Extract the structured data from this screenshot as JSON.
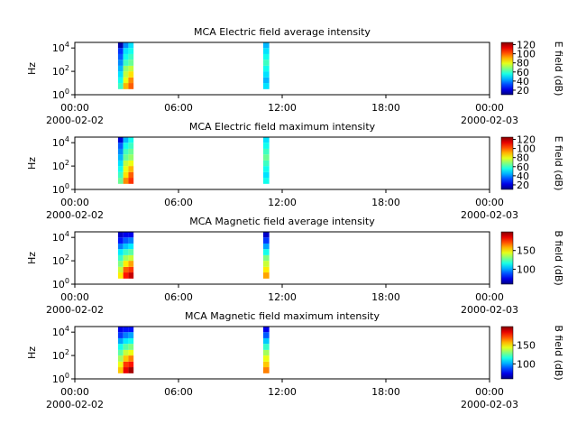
{
  "chart_data": [
    {
      "type": "spectrogram",
      "title": "MCA  Electric field average intensity",
      "ylabel": "Hz",
      "colorbar_label": "E field (dB)",
      "xlim": [
        0,
        24
      ],
      "xticks": [
        {
          "value": 0,
          "label": "00:00"
        },
        {
          "value": 6,
          "label": "06:00"
        },
        {
          "value": 12,
          "label": "12:00"
        },
        {
          "value": 18,
          "label": "18:00"
        },
        {
          "value": 24,
          "label": "00:00"
        }
      ],
      "x_date_labels": [
        {
          "value": 0,
          "label": "2000-02-02"
        },
        {
          "value": 24,
          "label": "2000-02-03"
        }
      ],
      "y_log": true,
      "ylim": [
        1,
        30000
      ],
      "yticks": [
        {
          "value": 1,
          "label": "10^0"
        },
        {
          "value": 100,
          "label": "10^2"
        },
        {
          "value": 10000,
          "label": "10^4"
        }
      ],
      "colormap": "jet",
      "clim": [
        10,
        125
      ],
      "cticks": [
        20,
        40,
        60,
        80,
        100,
        120
      ],
      "time_bins": [
        2.5,
        2.8,
        3.1,
        3.4,
        10.9,
        11.25
      ],
      "freq_bins": [
        3,
        10,
        30,
        100,
        300,
        1000,
        3000,
        10000,
        30000
      ],
      "values": [
        [
          60,
          90,
          100,
          null,
          50
        ],
        [
          55,
          80,
          95,
          null,
          45
        ],
        [
          50,
          75,
          85,
          null,
          50
        ],
        [
          45,
          70,
          75,
          null,
          55
        ],
        [
          40,
          60,
          65,
          null,
          60
        ],
        [
          35,
          55,
          60,
          null,
          55
        ],
        [
          30,
          50,
          55,
          null,
          50
        ],
        [
          15,
          40,
          50,
          null,
          45
        ]
      ]
    },
    {
      "type": "spectrogram",
      "title": "MCA  Electric field maximum intensity",
      "ylabel": "Hz",
      "colorbar_label": "E field (dB)",
      "xlim": [
        0,
        24
      ],
      "xticks": [
        {
          "value": 0,
          "label": "00:00"
        },
        {
          "value": 6,
          "label": "06:00"
        },
        {
          "value": 12,
          "label": "12:00"
        },
        {
          "value": 18,
          "label": "18:00"
        },
        {
          "value": 24,
          "label": "00:00"
        }
      ],
      "x_date_labels": [
        {
          "value": 0,
          "label": "2000-02-02"
        },
        {
          "value": 24,
          "label": "2000-02-03"
        }
      ],
      "y_log": true,
      "ylim": [
        1,
        30000
      ],
      "yticks": [
        {
          "value": 1,
          "label": "10^0"
        },
        {
          "value": 100,
          "label": "10^2"
        },
        {
          "value": 10000,
          "label": "10^4"
        }
      ],
      "colormap": "jet",
      "clim": [
        10,
        125
      ],
      "cticks": [
        20,
        40,
        60,
        80,
        100,
        120
      ],
      "time_bins": [
        2.5,
        2.8,
        3.1,
        3.4,
        10.9,
        11.25
      ],
      "freq_bins": [
        3,
        10,
        30,
        100,
        300,
        1000,
        3000,
        10000,
        30000
      ],
      "values": [
        [
          65,
          95,
          105,
          null,
          55
        ],
        [
          60,
          85,
          100,
          null,
          50
        ],
        [
          55,
          80,
          90,
          null,
          55
        ],
        [
          50,
          75,
          80,
          null,
          60
        ],
        [
          45,
          65,
          70,
          null,
          65
        ],
        [
          40,
          60,
          65,
          null,
          60
        ],
        [
          35,
          55,
          60,
          null,
          55
        ],
        [
          20,
          45,
          55,
          null,
          50
        ]
      ]
    },
    {
      "type": "spectrogram",
      "title": "MCA  Magnetic field average intensity",
      "ylabel": "Hz",
      "colorbar_label": "B field (dB)",
      "xlim": [
        0,
        24
      ],
      "xticks": [
        {
          "value": 0,
          "label": "00:00"
        },
        {
          "value": 6,
          "label": "06:00"
        },
        {
          "value": 12,
          "label": "12:00"
        },
        {
          "value": 18,
          "label": "18:00"
        },
        {
          "value": 24,
          "label": "00:00"
        }
      ],
      "x_date_labels": [
        {
          "value": 0,
          "label": "2000-02-02"
        },
        {
          "value": 24,
          "label": "2000-02-03"
        }
      ],
      "y_log": true,
      "ylim": [
        1,
        30000
      ],
      "yticks": [
        {
          "value": 1,
          "label": "10^0"
        },
        {
          "value": 100,
          "label": "10^2"
        },
        {
          "value": 10000,
          "label": "10^4"
        }
      ],
      "colormap": "jet",
      "clim": [
        60,
        200
      ],
      "cticks": [
        100,
        150
      ],
      "time_bins": [
        2.5,
        2.8,
        3.1,
        3.4,
        10.9,
        11.25
      ],
      "freq_bins": [
        3,
        10,
        30,
        100,
        300,
        1000,
        3000,
        10000,
        30000
      ],
      "values": [
        [
          150,
          180,
          190,
          null,
          160
        ],
        [
          140,
          170,
          175,
          null,
          150
        ],
        [
          130,
          150,
          160,
          null,
          140
        ],
        [
          120,
          135,
          140,
          null,
          130
        ],
        [
          110,
          120,
          125,
          null,
          115
        ],
        [
          95,
          105,
          110,
          null,
          100
        ],
        [
          80,
          90,
          95,
          null,
          85
        ],
        [
          70,
          75,
          75,
          null,
          70
        ]
      ]
    },
    {
      "type": "spectrogram",
      "title": "MCA  Magnetic field maximum intensity",
      "ylabel": "Hz",
      "colorbar_label": "B field (dB)",
      "xlim": [
        0,
        24
      ],
      "xticks": [
        {
          "value": 0,
          "label": "00:00"
        },
        {
          "value": 6,
          "label": "06:00"
        },
        {
          "value": 12,
          "label": "12:00"
        },
        {
          "value": 18,
          "label": "18:00"
        },
        {
          "value": 24,
          "label": "00:00"
        }
      ],
      "x_date_labels": [
        {
          "value": 0,
          "label": "2000-02-02"
        },
        {
          "value": 24,
          "label": "2000-02-03"
        }
      ],
      "y_log": true,
      "ylim": [
        1,
        30000
      ],
      "yticks": [
        {
          "value": 1,
          "label": "10^0"
        },
        {
          "value": 100,
          "label": "10^2"
        },
        {
          "value": 10000,
          "label": "10^4"
        }
      ],
      "colormap": "jet",
      "clim": [
        60,
        200
      ],
      "cticks": [
        100,
        150
      ],
      "time_bins": [
        2.5,
        2.8,
        3.1,
        3.4,
        10.9,
        11.25
      ],
      "freq_bins": [
        3,
        10,
        30,
        100,
        300,
        1000,
        3000,
        10000,
        30000
      ],
      "values": [
        [
          155,
          185,
          195,
          null,
          165
        ],
        [
          145,
          175,
          180,
          null,
          155
        ],
        [
          135,
          155,
          165,
          null,
          145
        ],
        [
          125,
          140,
          145,
          null,
          135
        ],
        [
          115,
          125,
          130,
          null,
          120
        ],
        [
          100,
          110,
          115,
          null,
          105
        ],
        [
          85,
          95,
          100,
          null,
          90
        ],
        [
          75,
          80,
          80,
          null,
          75
        ]
      ]
    }
  ]
}
